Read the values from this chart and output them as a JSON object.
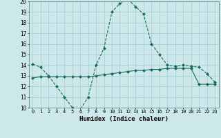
{
  "line1_x": [
    0,
    1,
    2,
    3,
    4,
    5,
    6,
    7,
    8,
    9,
    10,
    11,
    12,
    13,
    14,
    15,
    16,
    17,
    18,
    19,
    20,
    21,
    22,
    23
  ],
  "line1_y": [
    14.1,
    13.8,
    13.0,
    12.0,
    11.0,
    10.0,
    9.8,
    11.0,
    14.0,
    15.6,
    19.0,
    19.8,
    20.2,
    19.5,
    18.8,
    16.0,
    15.0,
    14.0,
    13.9,
    14.0,
    13.9,
    13.8,
    13.2,
    12.4
  ],
  "line2_x": [
    0,
    1,
    2,
    3,
    4,
    5,
    6,
    7,
    8,
    9,
    10,
    11,
    12,
    13,
    14,
    15,
    16,
    17,
    18,
    19,
    20,
    21,
    22,
    23
  ],
  "line2_y": [
    12.8,
    12.9,
    12.9,
    12.9,
    12.9,
    12.9,
    12.9,
    12.9,
    13.0,
    13.1,
    13.2,
    13.3,
    13.4,
    13.5,
    13.5,
    13.6,
    13.6,
    13.7,
    13.7,
    13.7,
    13.7,
    12.2,
    12.2,
    12.2
  ],
  "bg_color": "#cce8eb",
  "grid_color": "#aacfd4",
  "line_color": "#1a6b5a",
  "xlabel": "Humidex (Indice chaleur)",
  "xlim": [
    -0.5,
    23.5
  ],
  "ylim": [
    10,
    20
  ],
  "yticks": [
    10,
    11,
    12,
    13,
    14,
    15,
    16,
    17,
    18,
    19,
    20
  ],
  "xticks": [
    0,
    1,
    2,
    3,
    4,
    5,
    6,
    7,
    8,
    9,
    10,
    11,
    12,
    13,
    14,
    15,
    16,
    17,
    18,
    19,
    20,
    21,
    22,
    23
  ]
}
